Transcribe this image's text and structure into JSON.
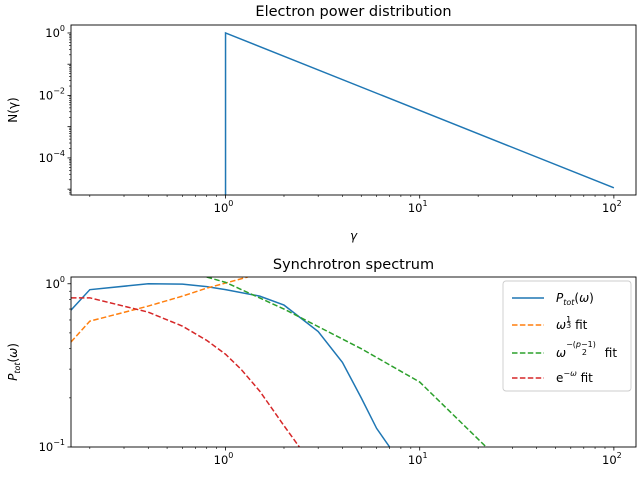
{
  "chart_data": [
    {
      "type": "line",
      "title": "Electron power distribution",
      "xlabel": "γ",
      "ylabel": "N(γ)",
      "xscale": "log",
      "yscale": "log",
      "xlim": [
        0.16,
        130
      ],
      "ylim": [
        6.5e-06,
        1.8
      ],
      "xticks": [
        {
          "value": 1,
          "base": "10",
          "exp": "0"
        },
        {
          "value": 10,
          "base": "10",
          "exp": "1"
        },
        {
          "value": 100,
          "base": "10",
          "exp": "2"
        }
      ],
      "yticks": [
        {
          "value": 1,
          "base": "10",
          "exp": "0"
        },
        {
          "value": 0.01,
          "base": "10",
          "exp": "−2"
        },
        {
          "value": 0.0001,
          "base": "10",
          "exp": "−4"
        }
      ],
      "series": [
        {
          "color": "#1f77b4",
          "x": [
            1,
            1,
            100
          ],
          "y": [
            6.5e-06,
            1,
            1.1e-05
          ]
        }
      ]
    },
    {
      "type": "line",
      "title": "Synchrotron spectrum",
      "xlabel": "",
      "ylabel": "P_tot(ω)",
      "xscale": "log",
      "yscale": "log",
      "xlim": [
        0.16,
        130
      ],
      "ylim": [
        0.1,
        1.1
      ],
      "legend_position": "top-right",
      "xticks": [
        {
          "value": 1,
          "base": "10",
          "exp": "0"
        },
        {
          "value": 10,
          "base": "10",
          "exp": "1"
        },
        {
          "value": 100,
          "base": "10",
          "exp": "2"
        }
      ],
      "yticks": [
        {
          "value": 1,
          "base": "10",
          "exp": "0"
        },
        {
          "value": 0.1,
          "base": "10",
          "exp": "−1"
        }
      ],
      "series": [
        {
          "name": "P_tot(ω)",
          "color": "#1f77b4",
          "dash": "solid",
          "x": [
            0.16,
            0.2,
            0.4,
            0.6,
            0.8,
            1.0,
            1.5,
            2.0,
            3.0,
            4.0,
            5.0,
            6.0,
            7.0
          ],
          "y": [
            0.69,
            0.92,
            1.0,
            0.995,
            0.96,
            0.92,
            0.84,
            0.74,
            0.51,
            0.33,
            0.2,
            0.13,
            0.1
          ]
        },
        {
          "name": "ω^(1/3) fit",
          "color": "#ff7f0e",
          "dash": "dashed",
          "x": [
            0.16,
            0.2,
            0.4,
            0.6,
            0.8,
            1.0,
            1.3
          ],
          "y": [
            0.44,
            0.59,
            0.73,
            0.84,
            0.94,
            1.01,
            1.1
          ]
        },
        {
          "name": "ω^(−(p−1)/2) fit",
          "color": "#2ca02c",
          "dash": "dashed",
          "x": [
            0.8,
            1.0,
            2.0,
            5.0,
            10.0,
            22.0
          ],
          "y": [
            1.1,
            1.02,
            0.7,
            0.4,
            0.25,
            0.1
          ]
        },
        {
          "name": "e^(−ω) fit",
          "color": "#d62728",
          "dash": "dashed",
          "x": [
            0.16,
            0.2,
            0.4,
            0.6,
            0.8,
            1.0,
            1.2,
            1.5,
            2.0,
            2.4
          ],
          "y": [
            0.82,
            0.82,
            0.67,
            0.55,
            0.45,
            0.37,
            0.3,
            0.22,
            0.135,
            0.1
          ]
        }
      ]
    }
  ]
}
